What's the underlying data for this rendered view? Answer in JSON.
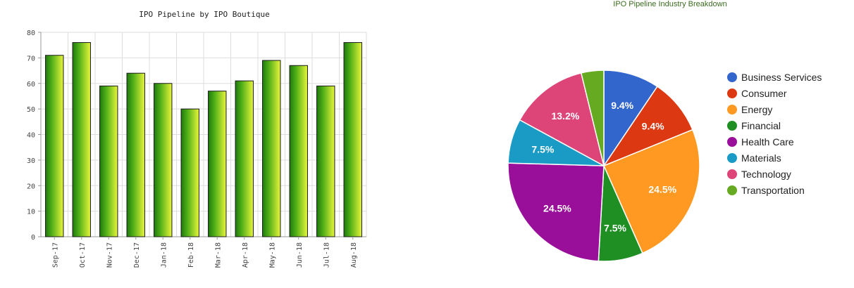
{
  "chart_data": [
    {
      "type": "bar",
      "title": "IPO Pipeline by IPO Boutique",
      "categories": [
        "Sep-17",
        "Oct-17",
        "Nov-17",
        "Dec-17",
        "Jan-18",
        "Feb-18",
        "Mar-18",
        "Apr-18",
        "May-18",
        "Jun-18",
        "Jul-18",
        "Aug-18"
      ],
      "values": [
        71,
        76,
        59,
        64,
        60,
        50,
        57,
        61,
        69,
        67,
        59,
        76
      ],
      "ylim": [
        0,
        80
      ],
      "yticks": [
        0,
        10,
        20,
        30,
        40,
        50,
        60,
        70,
        80
      ],
      "grid": true,
      "colors": {
        "bar_dark": "#1e7a0e",
        "bar_light": "#e8f53a",
        "grid": "#dddddd",
        "axis": "#999999"
      }
    },
    {
      "type": "pie",
      "title": "IPO Pipeline Industry Breakdown",
      "slices": [
        {
          "label": "Business Services",
          "value": 9.4,
          "display": "9.4%",
          "color": "#3366cc"
        },
        {
          "label": "Consumer",
          "value": 9.4,
          "display": "9.4%",
          "color": "#dc3912"
        },
        {
          "label": "Energy",
          "value": 24.5,
          "display": "24.5%",
          "color": "#ff9922"
        },
        {
          "label": "Financial",
          "value": 7.5,
          "display": "7.5%",
          "color": "#1f8f24"
        },
        {
          "label": "Health Care",
          "value": 24.5,
          "display": "24.5%",
          "color": "#990f99"
        },
        {
          "label": "Materials",
          "value": 7.5,
          "display": "7.5%",
          "color": "#1a9bc5"
        },
        {
          "label": "Technology",
          "value": 13.2,
          "display": "13.2%",
          "color": "#dd4477"
        },
        {
          "label": "Transportation",
          "value": 3.8,
          "display": "",
          "color": "#66aa22"
        }
      ],
      "legend_position": "right"
    }
  ]
}
